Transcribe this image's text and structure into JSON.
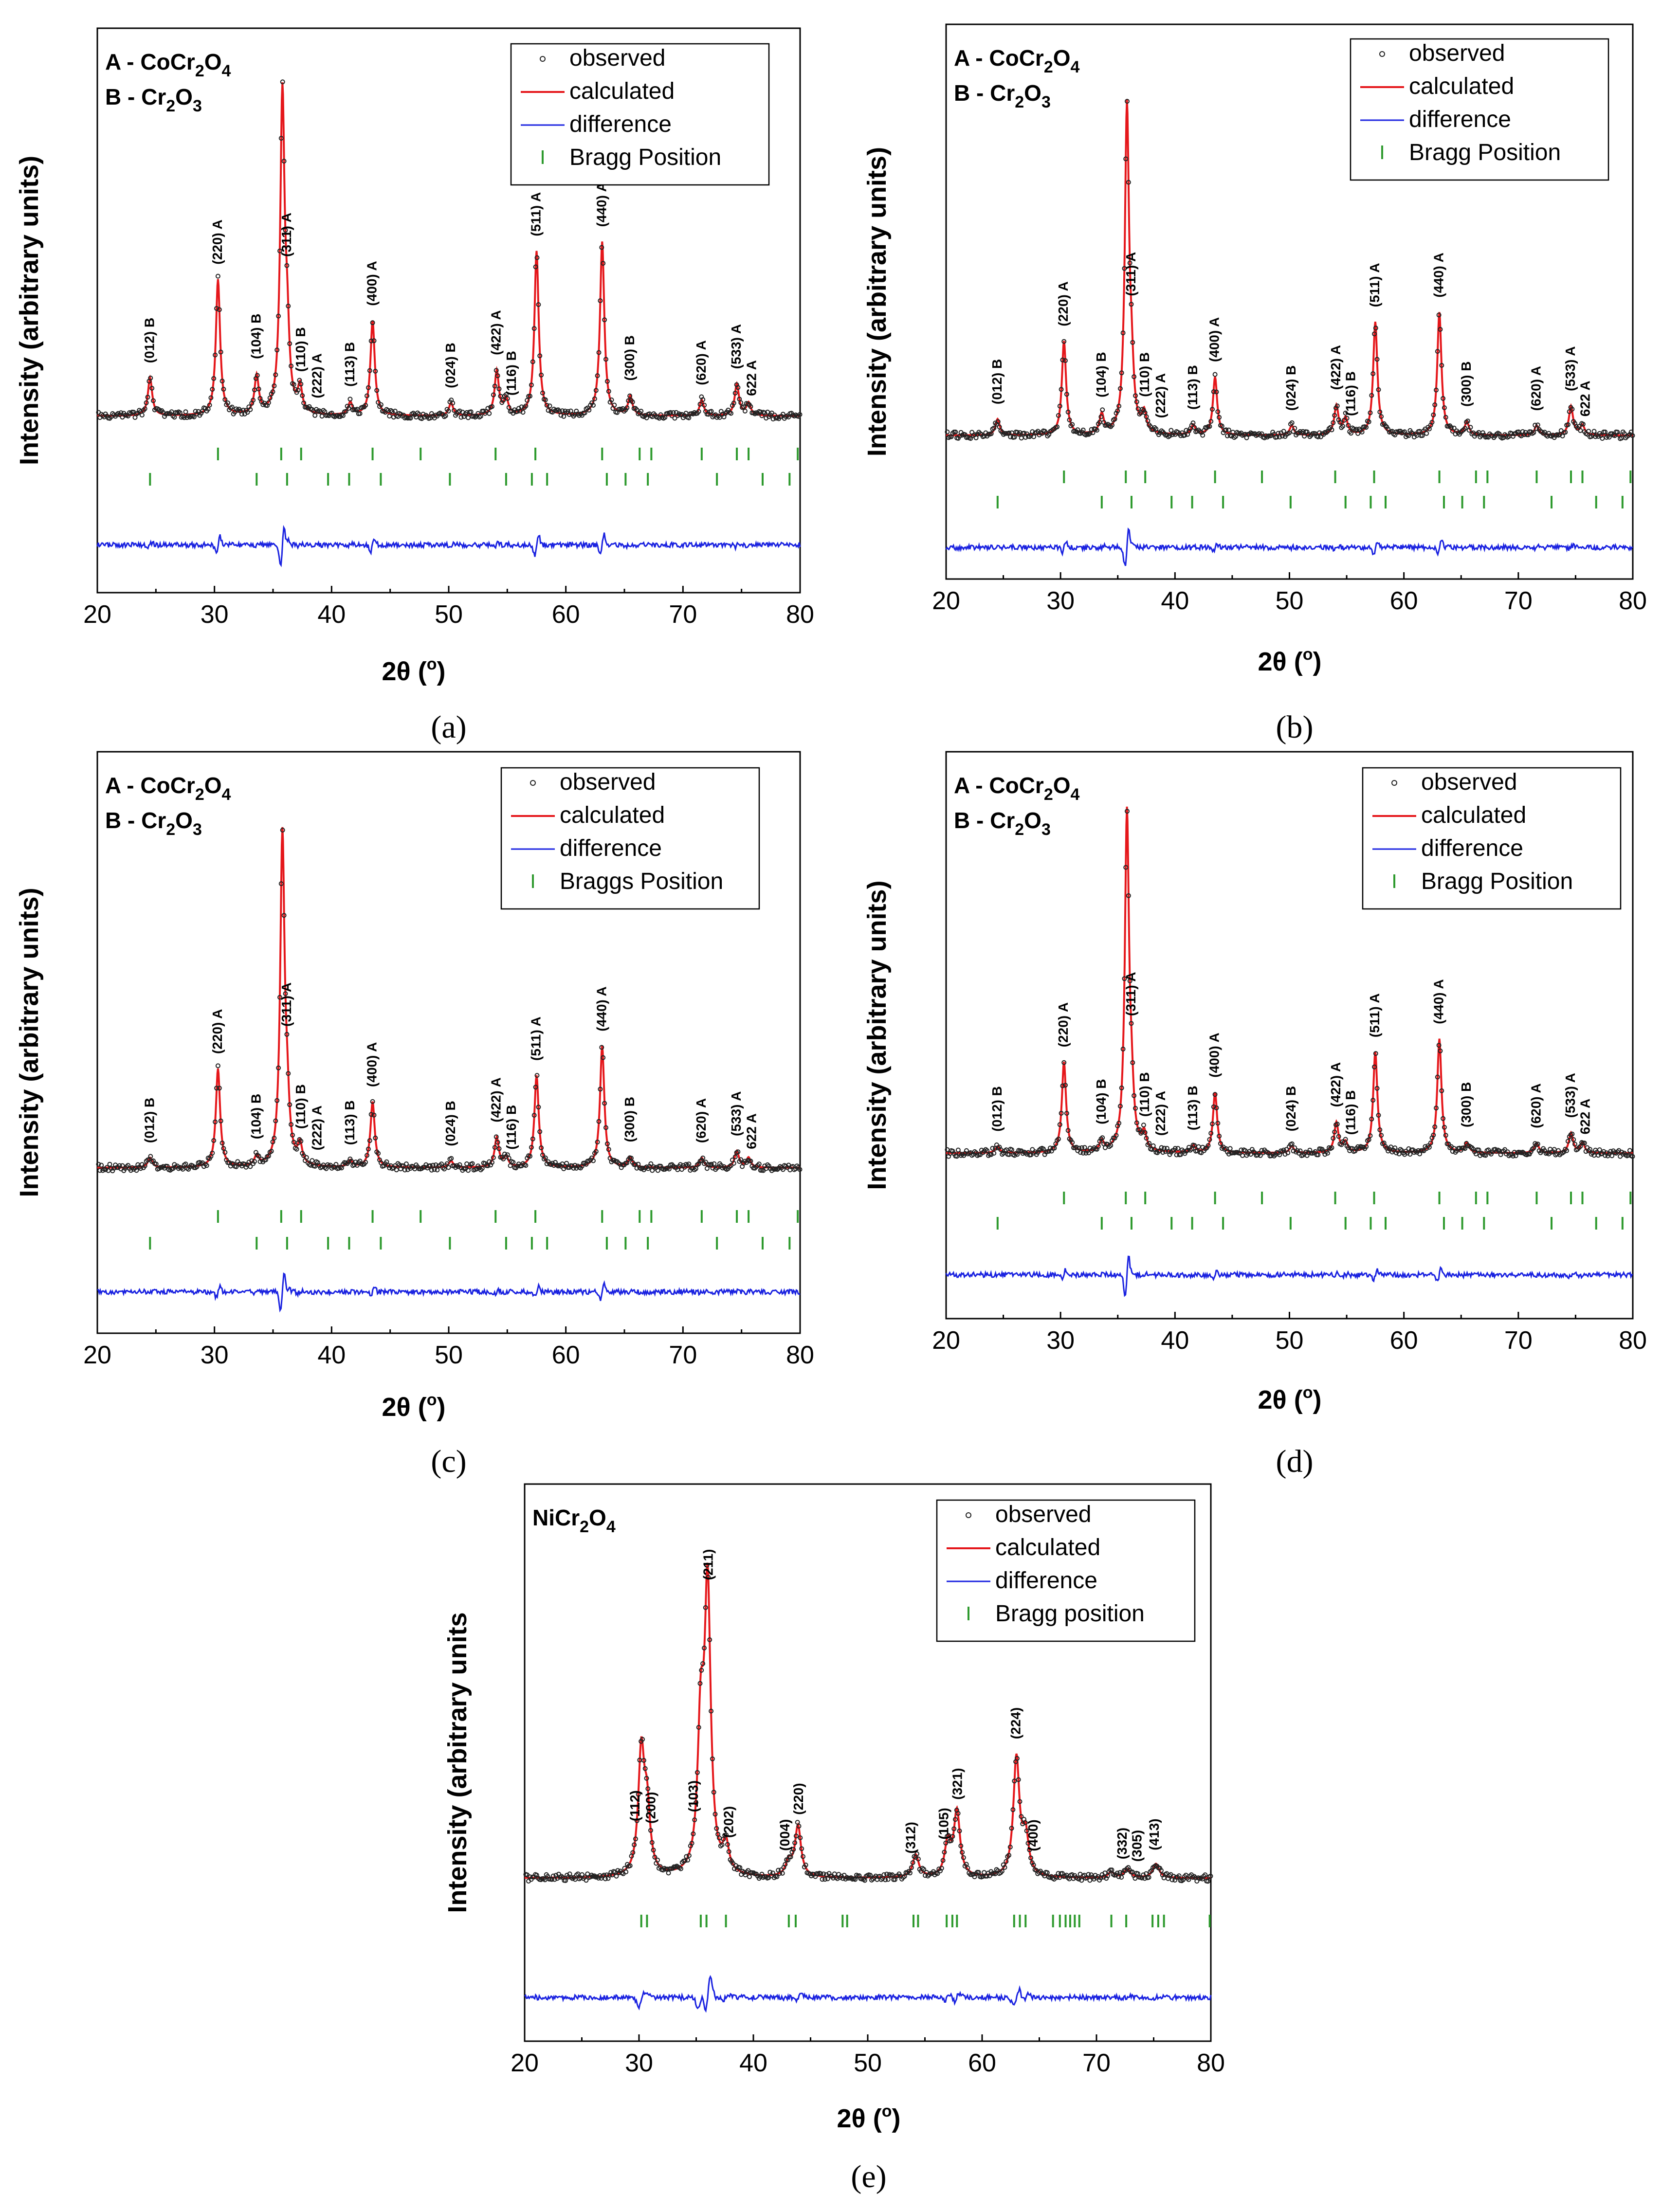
{
  "colors": {
    "observed": "#222222",
    "calculated": "#e5171b",
    "difference": "#1a22e0",
    "bragg": "#2e9a2e"
  },
  "chart_data": [
    {
      "type": "line",
      "panel_label": "(a)",
      "phase_labels": [
        [
          "A - CoCr",
          "2",
          "O",
          "4"
        ],
        [
          "B - Cr",
          "2",
          "O",
          "3"
        ]
      ],
      "xlabel_main": "2θ (",
      "xlabel_deg": "o",
      "xlabel_close": ")",
      "ylabel": "Intensity (arbitrary units)",
      "xlim": [
        20,
        80
      ],
      "xticks": [
        "20",
        "30",
        "40",
        "50",
        "60",
        "70",
        "80"
      ],
      "legend": {
        "observed": "observed",
        "calculated": "calculated",
        "difference": "difference",
        "bragg": "Bragg Position"
      },
      "peaks": [
        [
          24.5,
          0.12
        ],
        [
          30.3,
          0.43
        ],
        [
          33.6,
          0.12
        ],
        [
          35.8,
          1.0
        ],
        [
          36.2,
          0.22
        ],
        [
          37.3,
          0.08
        ],
        [
          41.6,
          0.04
        ],
        [
          43.5,
          0.3
        ],
        [
          50.2,
          0.04
        ],
        [
          54.1,
          0.14
        ],
        [
          54.9,
          0.05
        ],
        [
          57.5,
          0.52
        ],
        [
          63.1,
          0.55
        ],
        [
          65.5,
          0.06
        ],
        [
          71.6,
          0.05
        ],
        [
          74.6,
          0.1
        ],
        [
          75.6,
          0.04
        ]
      ],
      "peak_labels": [
        {
          "x": 24.5,
          "text": "(012) B"
        },
        {
          "x": 30.3,
          "text": "(220) A"
        },
        {
          "x": 33.6,
          "text": "(104) B"
        },
        {
          "x": 36.2,
          "text": "(311) A"
        },
        {
          "x": 37.4,
          "text": "(110) B"
        },
        {
          "x": 38.8,
          "text": "(222) A"
        },
        {
          "x": 41.6,
          "text": "(113) B"
        },
        {
          "x": 43.5,
          "text": "(400) A"
        },
        {
          "x": 50.2,
          "text": "(024) B"
        },
        {
          "x": 54.1,
          "text": "(422) A"
        },
        {
          "x": 55.4,
          "text": "(116) B"
        },
        {
          "x": 57.5,
          "text": "(511) A"
        },
        {
          "x": 63.1,
          "text": "(440) A"
        },
        {
          "x": 65.5,
          "text": "(300) B"
        },
        {
          "x": 71.6,
          "text": "(620) A"
        },
        {
          "x": 74.6,
          "text": "(533) A"
        },
        {
          "x": 75.9,
          "text": "622 A"
        }
      ],
      "bragg_A": [
        30.3,
        35.7,
        37.4,
        43.5,
        47.6,
        54.0,
        57.4,
        63.1,
        66.3,
        67.3,
        71.6,
        74.6,
        75.6,
        79.8
      ],
      "bragg_B": [
        24.5,
        33.6,
        36.2,
        39.7,
        41.5,
        44.2,
        50.1,
        54.9,
        57.1,
        58.4,
        63.5,
        65.1,
        67.0,
        72.9,
        76.8,
        79.1
      ]
    },
    {
      "type": "line",
      "panel_label": "(b)",
      "phase_labels": [
        [
          "A - CoCr",
          "2",
          "O",
          "4"
        ],
        [
          "B - Cr",
          "2",
          "O",
          "3"
        ]
      ],
      "xlabel_main": "2θ (",
      "xlabel_deg": "o",
      "xlabel_close": ")",
      "ylabel": "Intensity (arbitrary units)",
      "xlim": [
        20,
        80
      ],
      "xticks": [
        "20",
        "30",
        "40",
        "50",
        "60",
        "70",
        "80"
      ],
      "legend": {
        "observed": "observed",
        "calculated": "calculated",
        "difference": "difference",
        "bragg": "Bragg Position"
      },
      "peaks": [
        [
          24.5,
          0.05
        ],
        [
          30.3,
          0.29
        ],
        [
          33.6,
          0.06
        ],
        [
          35.8,
          1.0
        ],
        [
          36.2,
          0.15
        ],
        [
          37.3,
          0.06
        ],
        [
          41.6,
          0.03
        ],
        [
          43.5,
          0.18
        ],
        [
          50.2,
          0.03
        ],
        [
          54.1,
          0.09
        ],
        [
          54.9,
          0.05
        ],
        [
          57.5,
          0.35
        ],
        [
          63.1,
          0.38
        ],
        [
          65.5,
          0.04
        ],
        [
          71.6,
          0.03
        ],
        [
          74.6,
          0.09
        ],
        [
          75.6,
          0.03
        ]
      ],
      "peak_labels": [
        {
          "x": 24.5,
          "text": "(012) B"
        },
        {
          "x": 30.3,
          "text": "(220) A"
        },
        {
          "x": 33.6,
          "text": "(104) B"
        },
        {
          "x": 36.2,
          "text": "(311) A"
        },
        {
          "x": 37.4,
          "text": "(110) B"
        },
        {
          "x": 38.8,
          "text": "(222) A"
        },
        {
          "x": 41.6,
          "text": "(113) B"
        },
        {
          "x": 43.5,
          "text": "(400) A"
        },
        {
          "x": 50.2,
          "text": "(024) B"
        },
        {
          "x": 54.1,
          "text": "(422) A"
        },
        {
          "x": 55.4,
          "text": "(116) B"
        },
        {
          "x": 57.5,
          "text": "(511) A"
        },
        {
          "x": 63.1,
          "text": "(440) A"
        },
        {
          "x": 65.5,
          "text": "(300) B"
        },
        {
          "x": 71.6,
          "text": "(620) A"
        },
        {
          "x": 74.6,
          "text": "(533) A"
        },
        {
          "x": 75.9,
          "text": "622 A"
        }
      ],
      "bragg_A": [
        30.3,
        35.7,
        37.4,
        43.5,
        47.6,
        54.0,
        57.4,
        63.1,
        66.3,
        67.3,
        71.6,
        74.6,
        75.6,
        79.8
      ],
      "bragg_B": [
        24.5,
        33.6,
        36.2,
        39.7,
        41.5,
        44.2,
        50.1,
        54.9,
        57.1,
        58.4,
        63.5,
        65.1,
        67.0,
        72.9,
        76.8,
        79.1
      ]
    },
    {
      "type": "line",
      "panel_label": "(c)",
      "phase_labels": [
        [
          "A - CoCr",
          "2",
          "O",
          "4"
        ],
        [
          "B - Cr",
          "2",
          "O",
          "3"
        ]
      ],
      "xlabel_main": "2θ (",
      "xlabel_deg": "o",
      "xlabel_close": ")",
      "ylabel": "Intensity (arbitrary units)",
      "xlim": [
        20,
        80
      ],
      "xticks": [
        "20",
        "30",
        "40",
        "50",
        "60",
        "70",
        "80"
      ],
      "legend": {
        "observed": "observed",
        "calculated": "calculated",
        "difference": "difference",
        "bragg": "Braggs Position"
      },
      "peaks": [
        [
          24.5,
          0.03
        ],
        [
          30.3,
          0.3
        ],
        [
          33.6,
          0.03
        ],
        [
          35.8,
          1.0
        ],
        [
          36.2,
          0.15
        ],
        [
          37.3,
          0.06
        ],
        [
          41.6,
          0.02
        ],
        [
          43.5,
          0.2
        ],
        [
          50.2,
          0.02
        ],
        [
          54.1,
          0.09
        ],
        [
          54.9,
          0.03
        ],
        [
          57.5,
          0.28
        ],
        [
          63.1,
          0.37
        ],
        [
          65.5,
          0.03
        ],
        [
          71.6,
          0.03
        ],
        [
          74.6,
          0.05
        ],
        [
          75.6,
          0.03
        ]
      ],
      "peak_labels": [
        {
          "x": 24.5,
          "text": "(012) B"
        },
        {
          "x": 30.3,
          "text": "(220) A"
        },
        {
          "x": 33.6,
          "text": "(104) B"
        },
        {
          "x": 36.2,
          "text": "(311) A"
        },
        {
          "x": 37.4,
          "text": "(110) B"
        },
        {
          "x": 38.8,
          "text": "(222) A"
        },
        {
          "x": 41.6,
          "text": "(113) B"
        },
        {
          "x": 43.5,
          "text": "(400) A"
        },
        {
          "x": 50.2,
          "text": "(024) B"
        },
        {
          "x": 54.1,
          "text": "(422) A"
        },
        {
          "x": 55.4,
          "text": "(116) B"
        },
        {
          "x": 57.5,
          "text": "(511) A"
        },
        {
          "x": 63.1,
          "text": "(440) A"
        },
        {
          "x": 65.5,
          "text": "(300) B"
        },
        {
          "x": 71.6,
          "text": "(620) A"
        },
        {
          "x": 74.6,
          "text": "(533) A"
        },
        {
          "x": 75.9,
          "text": "622 A"
        }
      ],
      "bragg_A": [
        30.3,
        35.7,
        37.4,
        43.5,
        47.6,
        54.0,
        57.4,
        63.1,
        66.3,
        67.3,
        71.6,
        74.6,
        75.6,
        79.8
      ],
      "bragg_B": [
        24.5,
        33.6,
        36.2,
        39.7,
        41.5,
        44.2,
        50.1,
        54.9,
        57.1,
        58.4,
        63.5,
        65.1,
        67.0,
        72.9,
        76.8,
        79.1
      ]
    },
    {
      "type": "line",
      "panel_label": "(d)",
      "phase_labels": [
        [
          "A - CoCr",
          "2",
          "O",
          "4"
        ],
        [
          "B - Cr",
          "2",
          "O",
          "3"
        ]
      ],
      "xlabel_main": "2θ (",
      "xlabel_deg": "o",
      "xlabel_close": ")",
      "ylabel": "Intensity (arbitrary units)",
      "xlim": [
        20,
        80
      ],
      "xticks": [
        "20",
        "30",
        "40",
        "50",
        "60",
        "70",
        "80"
      ],
      "legend": {
        "observed": "observed",
        "calculated": "calculated",
        "difference": "difference",
        "bragg": "Bragg Position"
      },
      "peaks": [
        [
          24.5,
          0.02
        ],
        [
          30.3,
          0.27
        ],
        [
          33.6,
          0.03
        ],
        [
          35.8,
          1.0
        ],
        [
          36.2,
          0.13
        ],
        [
          37.3,
          0.05
        ],
        [
          41.6,
          0.02
        ],
        [
          43.5,
          0.18
        ],
        [
          50.2,
          0.02
        ],
        [
          54.1,
          0.09
        ],
        [
          54.9,
          0.03
        ],
        [
          57.5,
          0.3
        ],
        [
          63.1,
          0.34
        ],
        [
          65.5,
          0.03
        ],
        [
          71.6,
          0.03
        ],
        [
          74.6,
          0.06
        ],
        [
          75.6,
          0.03
        ]
      ],
      "peak_labels": [
        {
          "x": 24.5,
          "text": "(012) B"
        },
        {
          "x": 30.3,
          "text": "(220) A"
        },
        {
          "x": 33.6,
          "text": "(104) B"
        },
        {
          "x": 36.2,
          "text": "(311) A"
        },
        {
          "x": 37.4,
          "text": "(110) B"
        },
        {
          "x": 38.8,
          "text": "(222) A"
        },
        {
          "x": 41.6,
          "text": "(113) B"
        },
        {
          "x": 43.5,
          "text": "(400) A"
        },
        {
          "x": 50.2,
          "text": "(024) B"
        },
        {
          "x": 54.1,
          "text": "(422) A"
        },
        {
          "x": 55.4,
          "text": "(116) B"
        },
        {
          "x": 57.5,
          "text": "(511) A"
        },
        {
          "x": 63.1,
          "text": "(440) A"
        },
        {
          "x": 65.5,
          "text": "(300) B"
        },
        {
          "x": 71.6,
          "text": "(620) A"
        },
        {
          "x": 74.6,
          "text": "(533) A"
        },
        {
          "x": 75.9,
          "text": "622 A"
        }
      ],
      "bragg_A": [
        30.3,
        35.7,
        37.4,
        43.5,
        47.6,
        54.0,
        57.4,
        63.1,
        66.3,
        67.3,
        71.6,
        74.6,
        75.6,
        79.8
      ],
      "bragg_B": [
        24.5,
        33.6,
        36.2,
        39.7,
        41.5,
        44.2,
        50.1,
        54.9,
        57.1,
        58.4,
        63.5,
        65.1,
        67.0,
        72.9,
        76.8,
        79.1
      ]
    },
    {
      "type": "line",
      "panel_label": "(e)",
      "phase_labels": [
        [
          "NiCr",
          "2",
          "O",
          "4"
        ]
      ],
      "xlabel_main": "2θ (",
      "xlabel_deg": "o",
      "xlabel_close": ")",
      "ylabel": "Intensity (arbitrary units",
      "xlim": [
        20,
        80
      ],
      "xticks": [
        "20",
        "30",
        "40",
        "50",
        "60",
        "70",
        "80"
      ],
      "legend": {
        "observed": "observed",
        "calculated": "calculated",
        "difference": "difference",
        "bragg": "Bragg position"
      },
      "peaks": [
        [
          30.2,
          0.43
        ],
        [
          30.7,
          0.22
        ],
        [
          35.4,
          0.5
        ],
        [
          36.0,
          1.0
        ],
        [
          37.6,
          0.1
        ],
        [
          43.1,
          0.05
        ],
        [
          43.9,
          0.18
        ],
        [
          54.2,
          0.08
        ],
        [
          57.0,
          0.12
        ],
        [
          57.8,
          0.23
        ],
        [
          63.0,
          0.42
        ],
        [
          63.8,
          0.14
        ],
        [
          71.3,
          0.02
        ],
        [
          72.7,
          0.03
        ],
        [
          75.2,
          0.05
        ]
      ],
      "peak_labels": [
        {
          "x": 29.7,
          "text": "(112)"
        },
        {
          "x": 31.1,
          "text": "(200)"
        },
        {
          "x": 34.8,
          "text": "(103)"
        },
        {
          "x": 36.1,
          "text": "(211)"
        },
        {
          "x": 37.9,
          "text": "(202)"
        },
        {
          "x": 42.8,
          "text": "(004)"
        },
        {
          "x": 44.0,
          "text": "(220)"
        },
        {
          "x": 53.8,
          "text": "(312)"
        },
        {
          "x": 56.7,
          "text": "(105)"
        },
        {
          "x": 57.9,
          "text": "(321)"
        },
        {
          "x": 63.0,
          "text": "(224)"
        },
        {
          "x": 64.5,
          "text": "(400)"
        },
        {
          "x": 72.3,
          "text": "(332)"
        },
        {
          "x": 73.6,
          "text": "(305)"
        },
        {
          "x": 75.1,
          "text": "(413)"
        }
      ],
      "bragg_A": [
        30.2,
        30.7,
        35.4,
        35.9,
        37.6,
        43.1,
        43.7,
        47.8,
        48.2,
        54.0,
        54.4,
        56.9,
        57.4,
        57.8,
        62.8,
        63.3,
        63.8,
        66.2,
        66.8,
        67.3,
        67.7,
        68.1,
        68.5,
        71.3,
        72.6,
        74.9,
        75.4,
        75.9,
        79.9
      ]
    }
  ]
}
